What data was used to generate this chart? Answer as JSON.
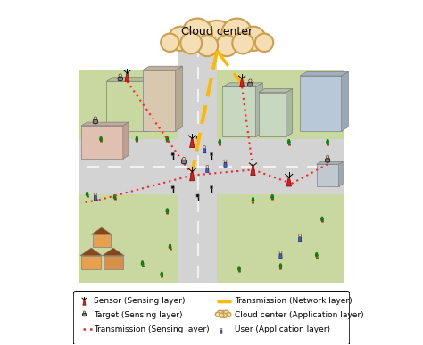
{
  "title": "Cloud center",
  "bg_color": "#ffffff",
  "cloud_color": "#F5DEB3",
  "cloud_edge": "#C8A050",
  "road_color": "#D3D3D3",
  "grass_color": "#D0E8B0",
  "building_colors": [
    "#C8D8A0",
    "#D8C0B0",
    "#B8C8D8",
    "#C8D090"
  ],
  "house_colors": [
    "#E8A050",
    "#D89048"
  ],
  "sensor_color": "#CC2222",
  "user_color": "#4466AA",
  "tree_color": "#228B22",
  "dotted_sensing": "#FF2222",
  "dashed_network": "#FFB800",
  "legend_items": [
    {
      "symbol": "sensor",
      "label": "Sensor (Sensing layer)"
    },
    {
      "symbol": "target",
      "label": "Target (Sensing layer)"
    },
    {
      "symbol": "dot_line",
      "label": "Transmission (Sensing layer)"
    },
    {
      "symbol": "dash_line",
      "label": "Transmission (Network layer)"
    },
    {
      "symbol": "cloud_small",
      "label": "Cloud center (Application layer)"
    },
    {
      "symbol": "user",
      "label": "User (Application layer)"
    }
  ],
  "figsize": [
    4.74,
    3.87
  ],
  "dpi": 100
}
